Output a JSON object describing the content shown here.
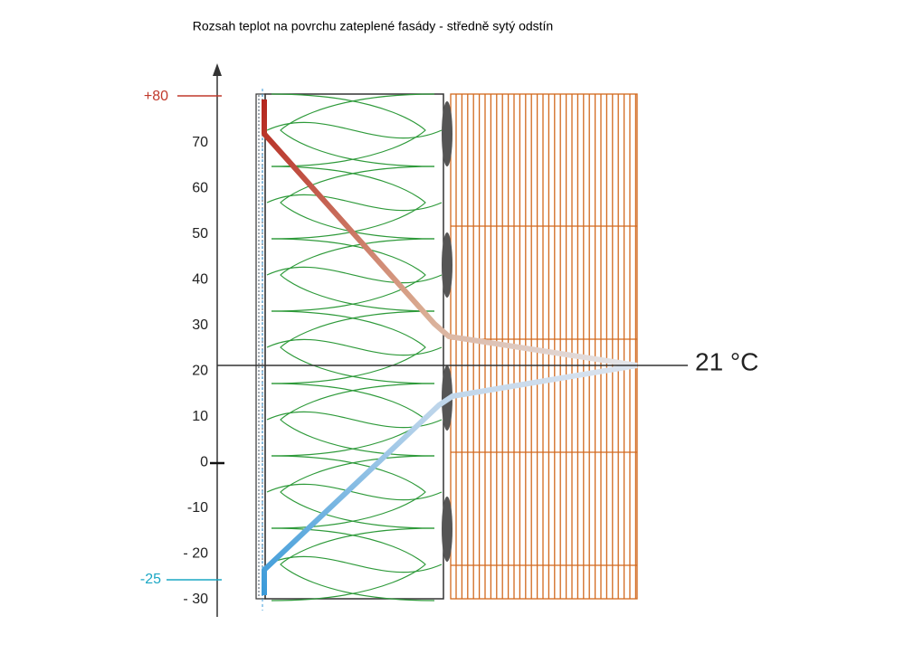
{
  "title": "Rozsah teplot na povrchu zateplené fasády - středně sytý odstín",
  "axis": {
    "ticks": [
      "70",
      "60",
      "50",
      "40",
      "30",
      "20",
      "10",
      "0",
      "-10",
      "- 20",
      "- 30"
    ],
    "max_label": "+80",
    "min_label": "-25"
  },
  "annotation": "21 °C"
}
